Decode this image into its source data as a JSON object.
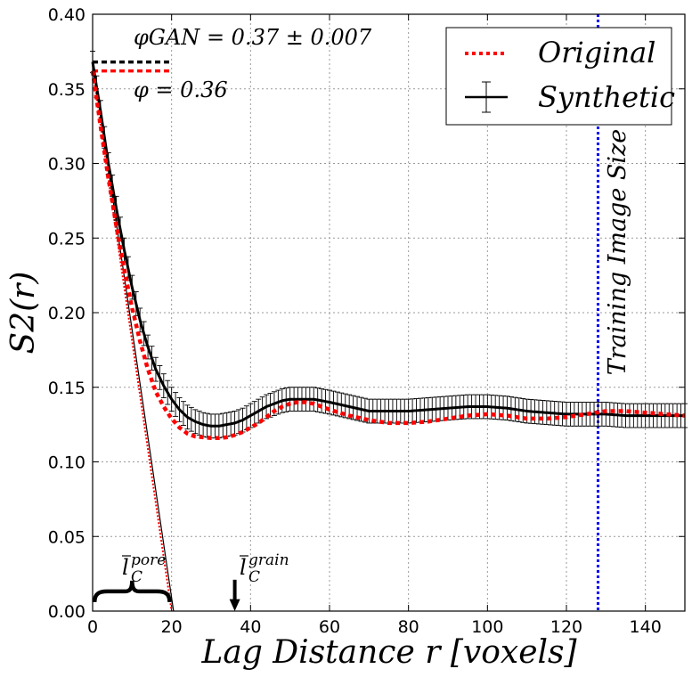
{
  "chart_data": {
    "type": "line",
    "title": "",
    "xlabel": "Lag Distance r [voxels]",
    "ylabel": "S2(r)",
    "xlim": [
      0,
      150
    ],
    "ylim": [
      0.0,
      0.4
    ],
    "grid": true,
    "xticks": [
      "0",
      "20",
      "40",
      "60",
      "80",
      "100",
      "120",
      "140"
    ],
    "yticks": [
      "0.00",
      "0.05",
      "0.10",
      "0.15",
      "0.20",
      "0.25",
      "0.30",
      "0.35",
      "0.40"
    ],
    "legend": {
      "placement": "top-right",
      "entries": [
        "Original",
        "Synthetic"
      ]
    },
    "series": [
      {
        "name": "Original",
        "style": "dotted",
        "color": "#ff0000",
        "x": [
          0,
          2,
          4,
          6,
          8,
          10,
          12,
          14,
          16,
          18,
          20,
          22,
          24,
          26,
          28,
          30,
          32,
          34,
          36,
          38,
          40,
          42,
          44,
          46,
          48,
          50,
          52,
          54,
          56,
          58,
          60,
          65,
          70,
          75,
          80,
          85,
          90,
          95,
          100,
          105,
          110,
          115,
          120,
          125,
          130,
          135,
          140,
          145,
          150
        ],
        "y": [
          0.362,
          0.325,
          0.29,
          0.258,
          0.229,
          0.203,
          0.181,
          0.162,
          0.147,
          0.137,
          0.129,
          0.123,
          0.119,
          0.117,
          0.1165,
          0.116,
          0.116,
          0.1165,
          0.118,
          0.12,
          0.123,
          0.126,
          0.13,
          0.134,
          0.137,
          0.139,
          0.14,
          0.14,
          0.139,
          0.137,
          0.135,
          0.131,
          0.128,
          0.126,
          0.126,
          0.127,
          0.129,
          0.131,
          0.132,
          0.131,
          0.129,
          0.129,
          0.13,
          0.132,
          0.134,
          0.134,
          0.133,
          0.132,
          0.131
        ]
      },
      {
        "name": "Synthetic",
        "style": "solid-errorbars",
        "color": "#000000",
        "x": [
          0,
          2,
          4,
          6,
          8,
          10,
          12,
          14,
          16,
          18,
          20,
          22,
          24,
          26,
          28,
          30,
          32,
          34,
          36,
          38,
          40,
          42,
          44,
          46,
          48,
          50,
          52,
          54,
          56,
          58,
          60,
          65,
          70,
          75,
          80,
          85,
          90,
          95,
          100,
          105,
          110,
          115,
          120,
          125,
          130,
          135,
          140,
          145,
          150
        ],
        "y": [
          0.368,
          0.335,
          0.3,
          0.27,
          0.242,
          0.217,
          0.195,
          0.177,
          0.162,
          0.151,
          0.142,
          0.135,
          0.13,
          0.127,
          0.125,
          0.124,
          0.124,
          0.125,
          0.126,
          0.128,
          0.131,
          0.134,
          0.137,
          0.139,
          0.141,
          0.142,
          0.142,
          0.142,
          0.142,
          0.141,
          0.14,
          0.137,
          0.134,
          0.134,
          0.134,
          0.135,
          0.136,
          0.137,
          0.137,
          0.136,
          0.134,
          0.133,
          0.132,
          0.132,
          0.132,
          0.131,
          0.131,
          0.131,
          0.131
        ],
        "err": 0.008
      }
    ],
    "porosity_lines": [
      {
        "label": "φGAN = 0.37 ± 0.007",
        "y": 0.368,
        "x_end": 20,
        "color": "#000000"
      },
      {
        "label": "φ = 0.36",
        "y": 0.362,
        "x_end": 20,
        "color": "#ff0000"
      }
    ],
    "tangent_lines": [
      {
        "name": "tangent-synthetic",
        "from": [
          0,
          0.368
        ],
        "to": [
          20.5,
          0.0
        ],
        "color": "#000000"
      },
      {
        "name": "tangent-original",
        "from": [
          0,
          0.362
        ],
        "to": [
          20,
          0.0
        ],
        "color": "#ff0000"
      }
    ],
    "vertical_line": {
      "label": "Training Image Size",
      "x": 128,
      "color": "#0000ff"
    },
    "annotations": [
      {
        "name": "pore-length",
        "label_main": "l",
        "label_sup": "pore",
        "label_sub": "C",
        "x": 10,
        "y": 0.01
      },
      {
        "name": "grain-length",
        "label_main": "l",
        "label_sup": "grain",
        "label_sub": "C",
        "x": 36,
        "y": 0.02
      }
    ]
  }
}
